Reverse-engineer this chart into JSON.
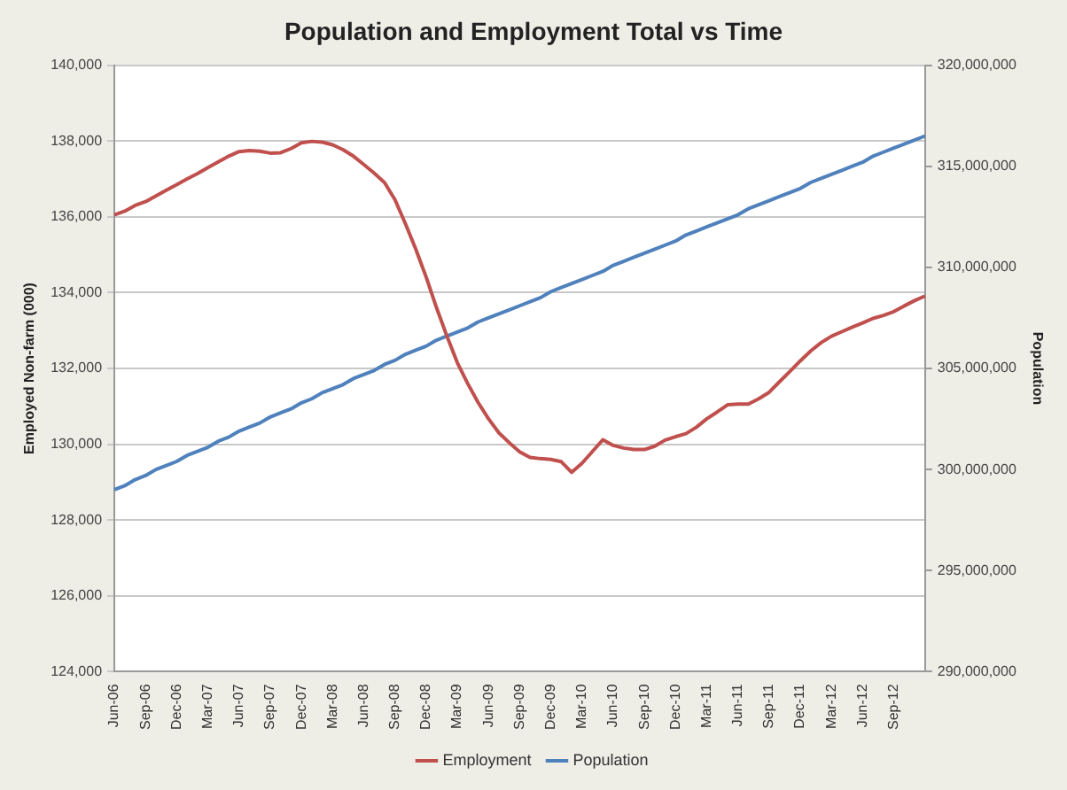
{
  "chart_data": {
    "type": "line",
    "title": "Population and Employment Total vs Time",
    "ylabel": "Employed Non-farm (000)",
    "y2label": "Population",
    "categories": [
      "Jun-06",
      null,
      null,
      "Sep-06",
      null,
      null,
      "Dec-06",
      null,
      null,
      "Mar-07",
      null,
      null,
      "Jun-07",
      null,
      null,
      "Sep-07",
      null,
      null,
      "Dec-07",
      null,
      null,
      "Mar-08",
      null,
      null,
      "Jun-08",
      null,
      null,
      "Sep-08",
      null,
      null,
      "Dec-08",
      null,
      null,
      "Mar-09",
      null,
      null,
      "Jun-09",
      null,
      null,
      "Sep-09",
      null,
      null,
      "Dec-09",
      null,
      null,
      "Mar-10",
      null,
      null,
      "Jun-10",
      null,
      null,
      "Sep-10",
      null,
      null,
      "Dec-10",
      null,
      null,
      "Mar-11",
      null,
      null,
      "Jun-11",
      null,
      null,
      "Sep-11",
      null,
      null,
      "Dec-11",
      null,
      null,
      "Mar-12",
      null,
      null,
      "Jun-12",
      null,
      null,
      "Sep-12",
      null,
      null,
      null
    ],
    "series": [
      {
        "name": "Employment",
        "color": "#c0504d",
        "values": [
          136050,
          136150,
          136300,
          136400,
          136550,
          136700,
          136850,
          137000,
          137140,
          137300,
          137450,
          137600,
          137720,
          137750,
          137730,
          137680,
          137690,
          137800,
          137950,
          137990,
          137970,
          137900,
          137770,
          137600,
          137380,
          137150,
          136900,
          136450,
          135820,
          135150,
          134410,
          133600,
          132850,
          132150,
          131600,
          131100,
          130670,
          130300,
          130040,
          129800,
          129650,
          129620,
          129600,
          129540,
          129260,
          129500,
          129810,
          130120,
          129970,
          129900,
          129860,
          129860,
          129950,
          130110,
          130200,
          130280,
          130450,
          130670,
          130850,
          131040,
          131060,
          131060,
          131200,
          131370,
          131650,
          131920,
          132200,
          132460,
          132680,
          132850,
          132970,
          133090,
          133200,
          133320,
          133400,
          133500,
          133650,
          133790,
          133910
        ]
      },
      {
        "name": "Population",
        "color": "#4f81bd",
        "axis": "y2",
        "values": [
          299000000,
          299200000,
          299500000,
          299700000,
          300000000,
          300200000,
          300400000,
          300700000,
          300900000,
          301100000,
          301400000,
          301600000,
          301900000,
          302100000,
          302300000,
          302600000,
          302800000,
          303000000,
          303300000,
          303500000,
          303800000,
          304000000,
          304200000,
          304500000,
          304700000,
          304900000,
          305200000,
          305400000,
          305700000,
          305900000,
          306100000,
          306400000,
          306600000,
          306800000,
          307000000,
          307300000,
          307500000,
          307700000,
          307900000,
          308100000,
          308300000,
          308500000,
          308800000,
          309000000,
          309200000,
          309400000,
          309600000,
          309800000,
          310100000,
          310300000,
          310500000,
          310700000,
          310900000,
          311100000,
          311300000,
          311600000,
          311800000,
          312000000,
          312200000,
          312400000,
          312600000,
          312900000,
          313100000,
          313300000,
          313500000,
          313700000,
          313900000,
          314200000,
          314400000,
          314600000,
          314800000,
          315000000,
          315200000,
          315500000,
          315700000,
          315900000,
          316100000,
          316300000,
          316500000
        ]
      }
    ],
    "ylim": [
      124000,
      140000
    ],
    "yticks": [
      {
        "value": 124000,
        "label": "124,000"
      },
      {
        "value": 126000,
        "label": "126,000"
      },
      {
        "value": 128000,
        "label": "128,000"
      },
      {
        "value": 130000,
        "label": "130,000"
      },
      {
        "value": 132000,
        "label": "132,000"
      },
      {
        "value": 134000,
        "label": "134,000"
      },
      {
        "value": 136000,
        "label": "136,000"
      },
      {
        "value": 138000,
        "label": "138,000"
      },
      {
        "value": 140000,
        "label": "140,000"
      }
    ],
    "y2lim": [
      290000000,
      320000000
    ],
    "y2ticks": [
      {
        "value": 290000000,
        "label": "290,000,000"
      },
      {
        "value": 295000000,
        "label": "295,000,000"
      },
      {
        "value": 300000000,
        "label": "300,000,000"
      },
      {
        "value": 305000000,
        "label": "305,000,000"
      },
      {
        "value": 310000000,
        "label": "310,000,000"
      },
      {
        "value": 315000000,
        "label": "315,000,000"
      },
      {
        "value": 320000000,
        "label": "320,000,000"
      }
    ],
    "grid": "y",
    "legend": "bottom",
    "marker": "none",
    "line_style": "solid"
  }
}
